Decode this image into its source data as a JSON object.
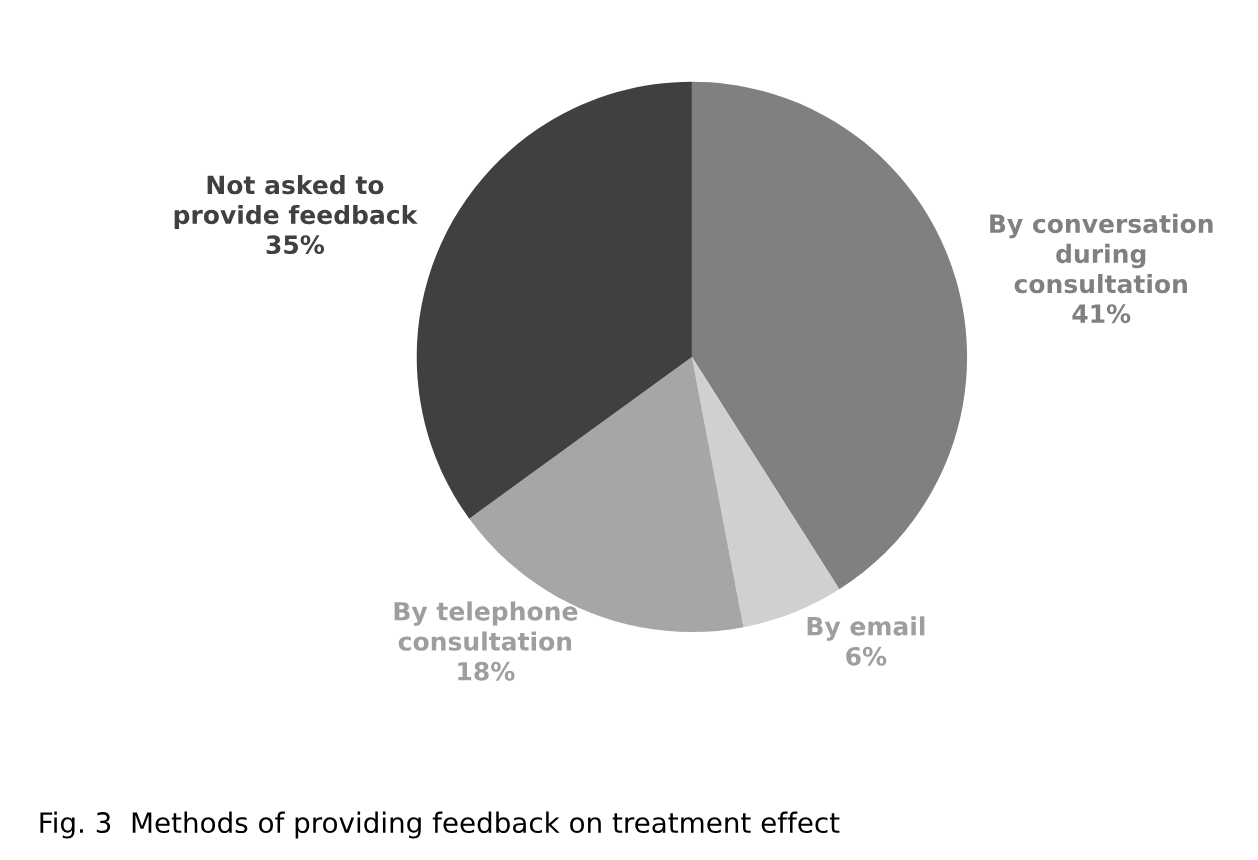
{
  "chart_data": {
    "type": "pie",
    "categories": [
      "By conversation\nduring\nconsultation",
      "By email",
      "By telephone\nconsultation",
      "Not asked to\nprovide feedback"
    ],
    "values": [
      41,
      6,
      18,
      35
    ],
    "colors": [
      "#808080",
      "#d0d0d0",
      "#a6a6a6",
      "#404040"
    ],
    "value_labels": [
      "41%",
      "6%",
      "18%",
      "35%"
    ],
    "annotations": [
      "Fig. 3  Methods of providing feedback on treatment effect"
    ]
  }
}
